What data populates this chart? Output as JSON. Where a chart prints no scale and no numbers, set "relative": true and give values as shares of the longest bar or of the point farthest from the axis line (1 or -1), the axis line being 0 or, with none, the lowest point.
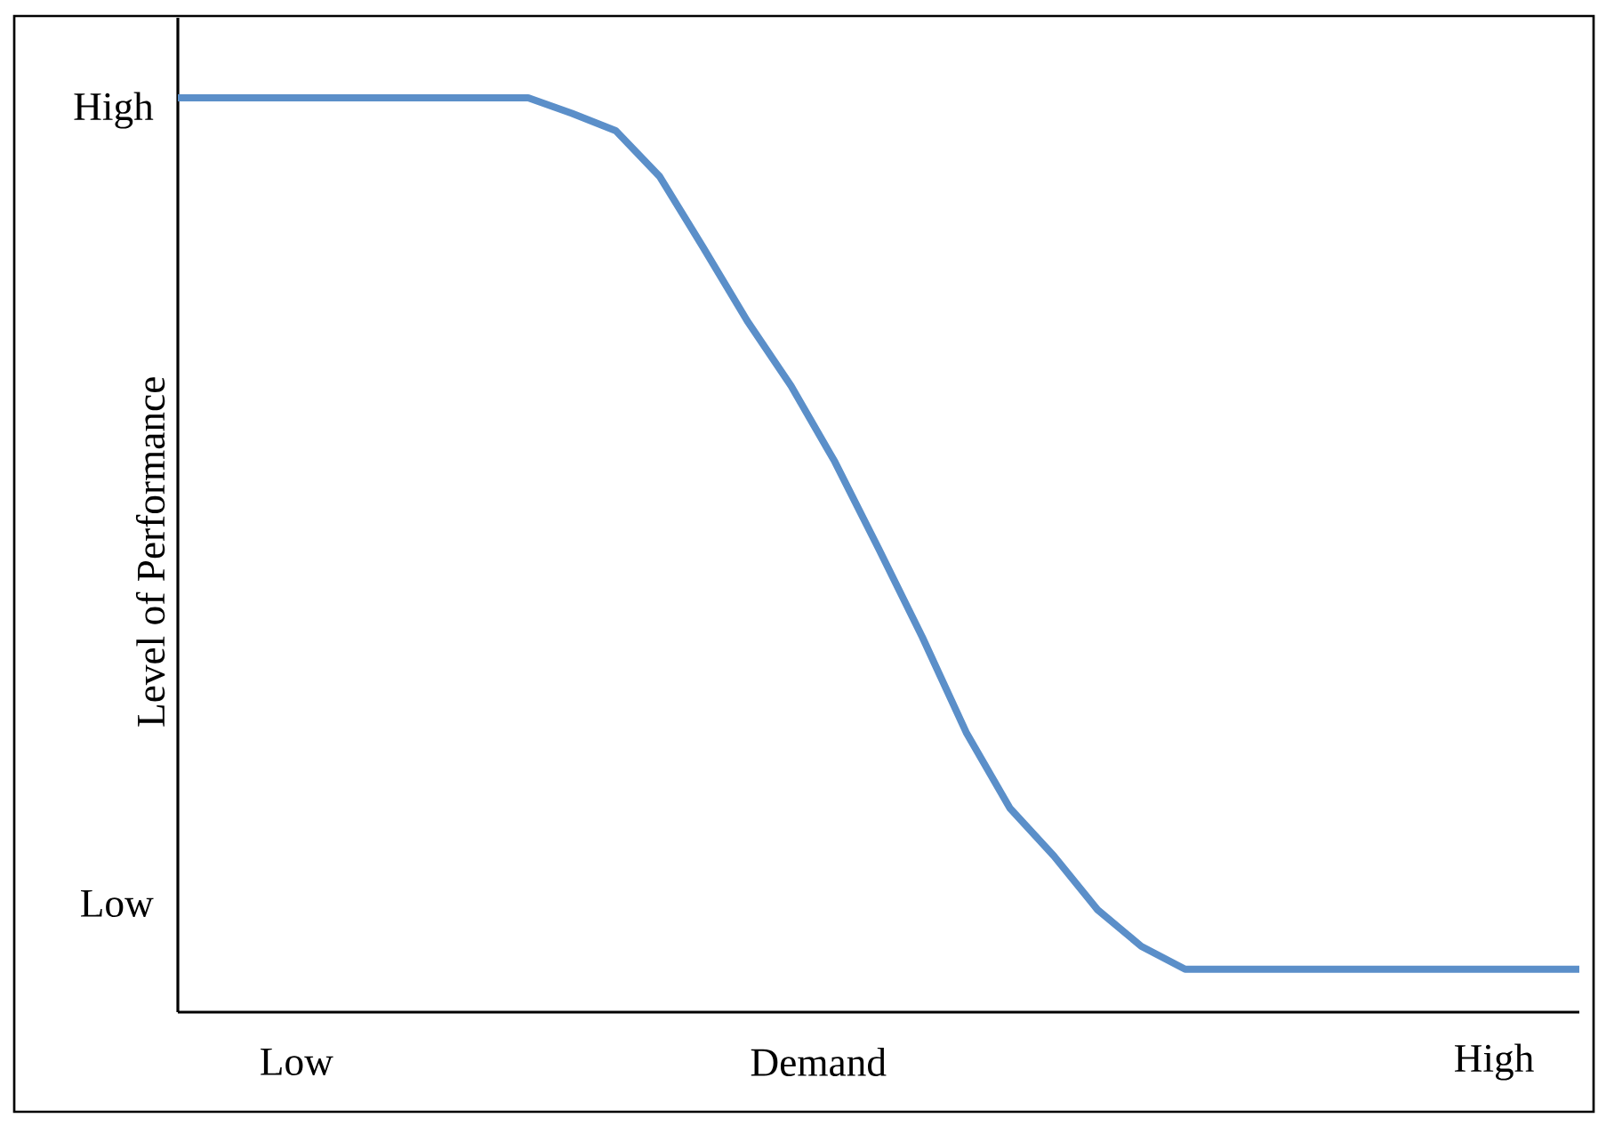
{
  "chart_data": {
    "type": "line",
    "relative": true,
    "xlabel": "Demand",
    "ylabel": "Level of Performance",
    "categories": [
      null,
      null,
      null,
      null,
      null,
      null,
      null,
      null,
      null,
      null,
      null,
      null,
      null,
      null,
      null,
      null,
      null,
      null,
      null,
      null,
      null,
      null,
      null,
      null,
      null,
      null,
      null,
      null,
      null,
      null,
      null,
      null,
      null
    ],
    "values": [
      1.0,
      1.0,
      1.0,
      1.0,
      1.0,
      1.0,
      1.0,
      1.0,
      1.0,
      0.983,
      0.964,
      0.914,
      0.836,
      0.756,
      0.685,
      0.602,
      0.507,
      0.41,
      0.306,
      0.223,
      0.171,
      0.112,
      0.072,
      0.047,
      0.047,
      0.047,
      0.047,
      0.047,
      0.047,
      0.047,
      0.047,
      0.047,
      0.047
    ],
    "color": "#5b8fc9",
    "annotations": [
      "High",
      "Low",
      "Low",
      "High"
    ]
  }
}
